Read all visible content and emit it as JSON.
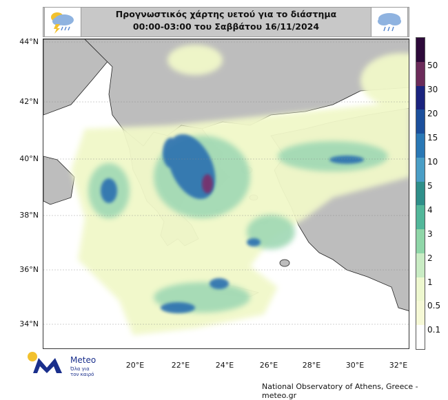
{
  "title": {
    "line1": "Προγνωστικός χάρτης υετού για το διάστημα",
    "line2": "00:00-03:00 του Σαββάτου 16/11/2024"
  },
  "latitude_labels": [
    "44°N",
    "42°N",
    "40°N",
    "38°N",
    "36°N",
    "34°N"
  ],
  "longitude_labels": [
    "20°E",
    "22°E",
    "24°E",
    "26°E",
    "28°E",
    "30°E",
    "32°E"
  ],
  "colorbar": {
    "labels": [
      "50",
      "30",
      "20",
      "15",
      "10",
      "5",
      "4",
      "3",
      "2",
      "1",
      "0.5",
      "0.1"
    ],
    "colors": [
      "#2d0a3a",
      "#6b2b5a",
      "#1a237e",
      "#1b4f9c",
      "#2a78b5",
      "#4a9ec6",
      "#2f8f8a",
      "#52b79a",
      "#8fd6a8",
      "#c9ecc4",
      "#eef8cf",
      "#f6f9d6",
      "#ffffff"
    ]
  },
  "colors": {
    "land": "#bdbdbd",
    "sea": "#ffffff",
    "light_rain": "#f1f8c9",
    "moderate_rain": "#9fd8b4",
    "heavy_rain": "#2a6fb0",
    "very_heavy": "#7a2f6b"
  },
  "logo": {
    "icon": "meteo-logo-icon",
    "name": "Meteo",
    "tagline_1": "Όλα για",
    "tagline_2": "τον καιρό"
  },
  "credit": "National Observatory of Athens, Greece - meteo.gr"
}
